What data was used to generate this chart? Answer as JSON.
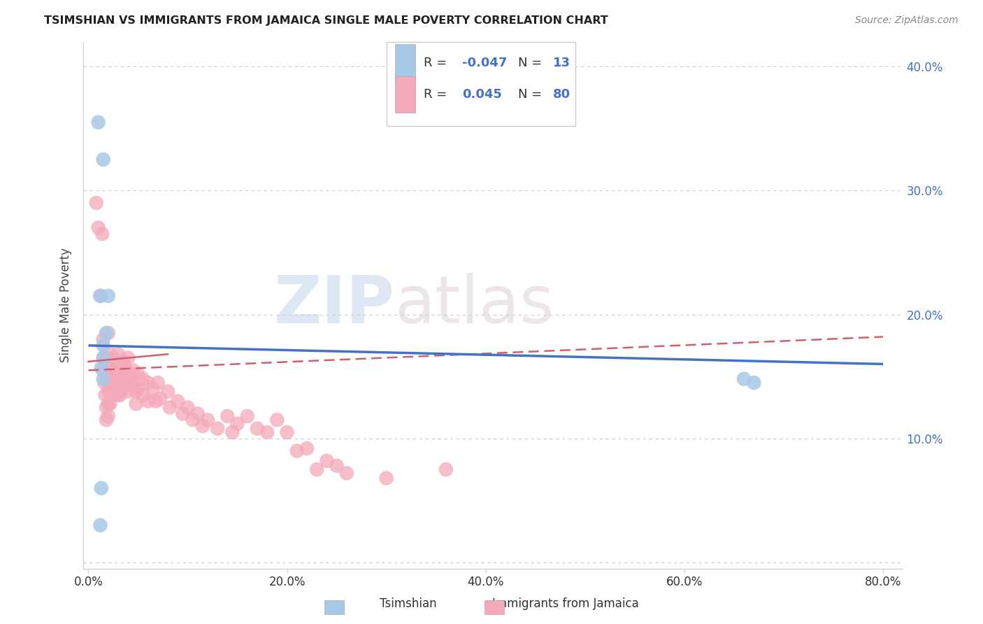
{
  "title": "TSIMSHIAN VS IMMIGRANTS FROM JAMAICA SINGLE MALE POVERTY CORRELATION CHART",
  "source": "Source: ZipAtlas.com",
  "ylabel": "Single Male Poverty",
  "legend_label1": "Tsimshian",
  "legend_label2": "Immigrants from Jamaica",
  "r1": -0.047,
  "n1": 13,
  "r2": 0.045,
  "n2": 80,
  "color_tsimshian": "#a8c8e8",
  "color_jamaica": "#f4a8b8",
  "color_line_tsimshian": "#4472c4",
  "color_line_jamaica": "#d06070",
  "watermark_zip": "ZIP",
  "watermark_atlas": "atlas",
  "tsimshian_points": [
    [
      0.01,
      0.355
    ],
    [
      0.015,
      0.325
    ],
    [
      0.012,
      0.215
    ],
    [
      0.02,
      0.215
    ],
    [
      0.018,
      0.185
    ],
    [
      0.015,
      0.175
    ],
    [
      0.015,
      0.165
    ],
    [
      0.013,
      0.157
    ],
    [
      0.015,
      0.148
    ],
    [
      0.013,
      0.06
    ],
    [
      0.012,
      0.03
    ],
    [
      0.66,
      0.148
    ],
    [
      0.67,
      0.145
    ]
  ],
  "jamaica_points": [
    [
      0.008,
      0.29
    ],
    [
      0.01,
      0.27
    ],
    [
      0.012,
      0.215
    ],
    [
      0.014,
      0.265
    ],
    [
      0.015,
      0.18
    ],
    [
      0.015,
      0.165
    ],
    [
      0.015,
      0.155
    ],
    [
      0.016,
      0.145
    ],
    [
      0.017,
      0.135
    ],
    [
      0.018,
      0.125
    ],
    [
      0.018,
      0.115
    ],
    [
      0.02,
      0.185
    ],
    [
      0.02,
      0.17
    ],
    [
      0.02,
      0.158
    ],
    [
      0.02,
      0.148
    ],
    [
      0.02,
      0.138
    ],
    [
      0.02,
      0.128
    ],
    [
      0.02,
      0.118
    ],
    [
      0.022,
      0.148
    ],
    [
      0.022,
      0.138
    ],
    [
      0.022,
      0.128
    ],
    [
      0.025,
      0.165
    ],
    [
      0.025,
      0.155
    ],
    [
      0.025,
      0.142
    ],
    [
      0.028,
      0.152
    ],
    [
      0.028,
      0.138
    ],
    [
      0.03,
      0.168
    ],
    [
      0.03,
      0.158
    ],
    [
      0.03,
      0.145
    ],
    [
      0.03,
      0.135
    ],
    [
      0.032,
      0.148
    ],
    [
      0.032,
      0.135
    ],
    [
      0.035,
      0.162
    ],
    [
      0.035,
      0.15
    ],
    [
      0.038,
      0.155
    ],
    [
      0.038,
      0.142
    ],
    [
      0.04,
      0.165
    ],
    [
      0.04,
      0.15
    ],
    [
      0.04,
      0.138
    ],
    [
      0.042,
      0.148
    ],
    [
      0.045,
      0.155
    ],
    [
      0.045,
      0.142
    ],
    [
      0.048,
      0.138
    ],
    [
      0.048,
      0.128
    ],
    [
      0.05,
      0.152
    ],
    [
      0.05,
      0.14
    ],
    [
      0.055,
      0.148
    ],
    [
      0.055,
      0.135
    ],
    [
      0.06,
      0.145
    ],
    [
      0.06,
      0.13
    ],
    [
      0.065,
      0.14
    ],
    [
      0.068,
      0.13
    ],
    [
      0.07,
      0.145
    ],
    [
      0.072,
      0.132
    ],
    [
      0.08,
      0.138
    ],
    [
      0.082,
      0.125
    ],
    [
      0.09,
      0.13
    ],
    [
      0.095,
      0.12
    ],
    [
      0.1,
      0.125
    ],
    [
      0.105,
      0.115
    ],
    [
      0.11,
      0.12
    ],
    [
      0.115,
      0.11
    ],
    [
      0.12,
      0.115
    ],
    [
      0.13,
      0.108
    ],
    [
      0.14,
      0.118
    ],
    [
      0.145,
      0.105
    ],
    [
      0.15,
      0.112
    ],
    [
      0.16,
      0.118
    ],
    [
      0.17,
      0.108
    ],
    [
      0.18,
      0.105
    ],
    [
      0.19,
      0.115
    ],
    [
      0.2,
      0.105
    ],
    [
      0.21,
      0.09
    ],
    [
      0.22,
      0.092
    ],
    [
      0.23,
      0.075
    ],
    [
      0.24,
      0.082
    ],
    [
      0.25,
      0.078
    ],
    [
      0.26,
      0.072
    ],
    [
      0.3,
      0.068
    ],
    [
      0.36,
      0.075
    ]
  ],
  "tsim_line": [
    [
      0.0,
      0.175
    ],
    [
      0.8,
      0.16
    ]
  ],
  "jam_line_solid": [
    [
      0.0,
      0.162
    ],
    [
      0.08,
      0.168
    ]
  ],
  "jam_line_dashed": [
    [
      0.0,
      0.155
    ],
    [
      0.8,
      0.182
    ]
  ]
}
